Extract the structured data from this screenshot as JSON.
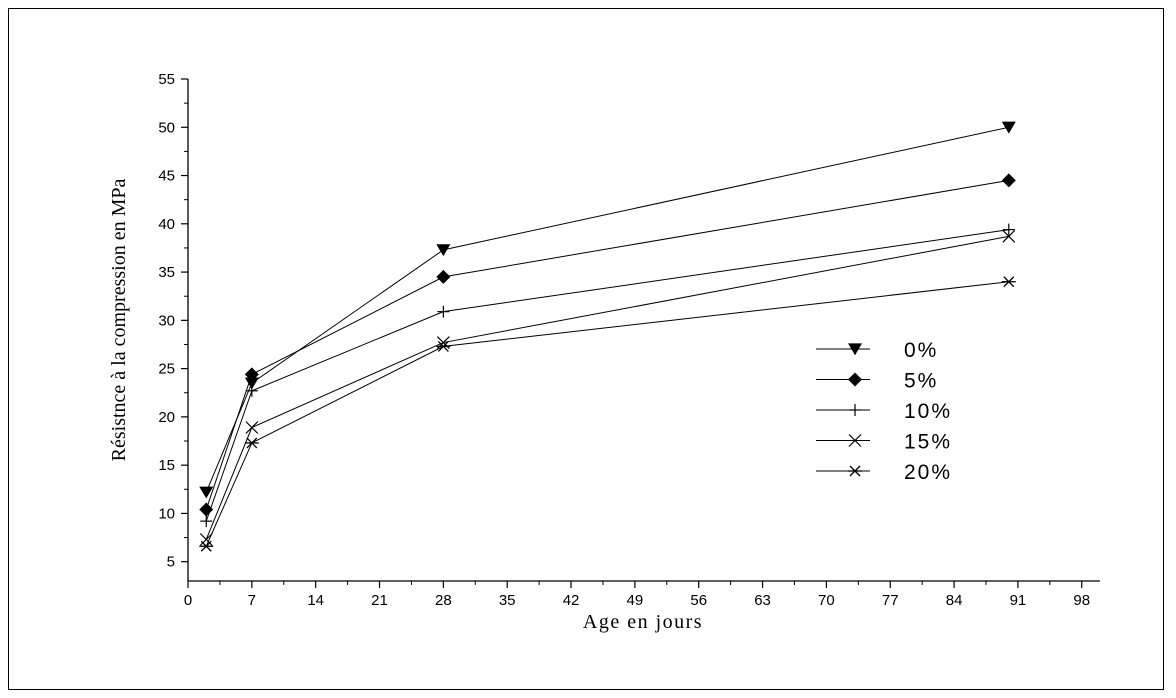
{
  "chart_data": {
    "type": "line",
    "xlabel": "Age en jours",
    "ylabel": "Résistnce à la compression en MPa",
    "xlim": [
      0,
      100
    ],
    "ylim": [
      3,
      55
    ],
    "x_ticks": [
      0,
      7,
      14,
      21,
      28,
      35,
      42,
      49,
      56,
      63,
      70,
      77,
      84,
      91,
      98
    ],
    "y_ticks": [
      5,
      10,
      15,
      20,
      25,
      30,
      35,
      40,
      45,
      50,
      55
    ],
    "legend_position": "center-right",
    "grid": false,
    "x": [
      2,
      7,
      28,
      90
    ],
    "series": [
      {
        "name": "0%",
        "marker": "triangle-down",
        "values": [
          12.2,
          23.5,
          37.3,
          50.0
        ]
      },
      {
        "name": "5%",
        "marker": "diamond",
        "values": [
          10.4,
          24.4,
          34.5,
          44.5
        ]
      },
      {
        "name": "10%",
        "marker": "plus",
        "values": [
          9.2,
          22.7,
          30.9,
          39.4
        ]
      },
      {
        "name": "15%",
        "marker": "x",
        "values": [
          7.3,
          18.9,
          27.7,
          38.7
        ]
      },
      {
        "name": "20%",
        "marker": "asterisk",
        "values": [
          6.6,
          17.3,
          27.3,
          34.0
        ]
      }
    ]
  }
}
